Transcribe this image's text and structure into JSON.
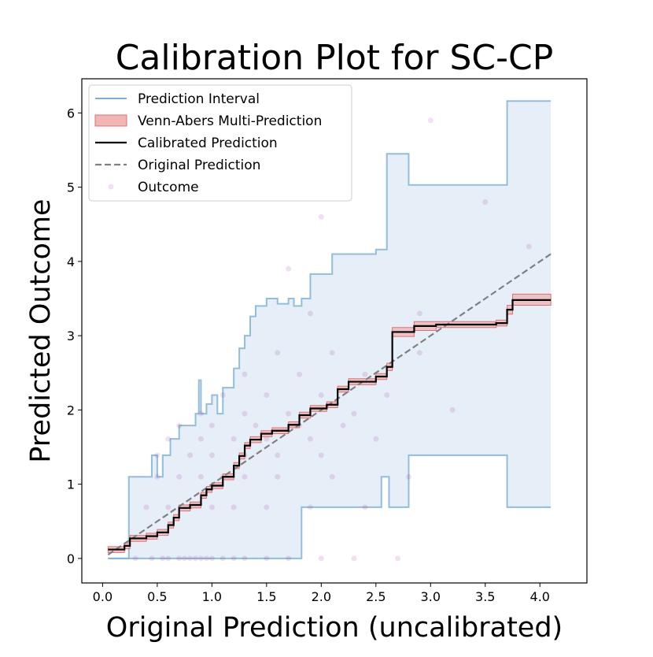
{
  "chart_data": {
    "type": "calibration",
    "title": "Calibration Plot for SC-CP",
    "x_label": "Original Prediction (uncalibrated)",
    "y_label": "Predicted Outcome",
    "xlim": [
      -0.19,
      4.43
    ],
    "ylim": [
      -0.33,
      6.46
    ],
    "xticks": [
      {
        "value": 0,
        "label": "0.0"
      },
      0.5,
      {
        "value": 1,
        "label": "1.0"
      },
      1.5,
      {
        "value": 2,
        "label": "2.0"
      },
      2.5,
      {
        "value": 3,
        "label": "3.0"
      },
      3.5,
      {
        "value": 4,
        "label": "4.0"
      }
    ],
    "yticks": [
      0,
      1,
      2,
      3,
      4,
      5,
      6
    ],
    "legend": "upper left",
    "series": [
      {
        "name": "Prediction Interval",
        "color": "#7bafd4",
        "fill": "#e6eef8",
        "x": [
          0.05,
          0.24,
          0.45,
          0.5,
          0.55,
          0.62,
          0.7,
          0.85,
          0.88,
          0.9,
          0.95,
          1.0,
          1.05,
          1.1,
          1.2,
          1.25,
          1.3,
          1.35,
          1.4,
          1.5,
          1.6,
          1.7,
          1.75,
          1.82,
          1.9,
          2.1,
          2.2,
          2.5,
          2.55,
          2.6,
          2.62,
          2.8,
          3.62,
          3.7,
          4.1
        ],
        "upper": [
          0,
          1.1,
          1.39,
          1.1,
          1.39,
          1.61,
          1.79,
          1.95,
          2.4,
          1.95,
          2.08,
          2.2,
          1.95,
          2.3,
          2.56,
          2.83,
          3.0,
          3.26,
          3.4,
          3.5,
          3.43,
          3.5,
          3.4,
          3.5,
          3.83,
          4.1,
          4.1,
          4.16,
          4.16,
          5.45,
          5.45,
          5.03,
          5.03,
          6.16,
          6.16
        ],
        "lower": [
          0,
          0,
          0,
          0,
          0,
          0,
          0,
          0,
          0,
          0,
          0,
          0,
          0,
          0,
          0,
          0,
          0,
          0,
          0,
          0,
          0,
          0,
          0,
          0.69,
          0.69,
          0.69,
          0.69,
          0.69,
          1.1,
          1.1,
          0.69,
          1.39,
          1.39,
          0.69,
          0.69
        ]
      },
      {
        "name": "Venn-Abers Multi-Prediction",
        "color": "#f0b6b6",
        "edge": "#e07070"
      },
      {
        "name": "Calibrated Prediction",
        "color": "#000000",
        "x": [
          0.05,
          0.2,
          0.25,
          0.4,
          0.5,
          0.6,
          0.65,
          0.7,
          0.8,
          0.9,
          0.95,
          1.0,
          1.1,
          1.2,
          1.25,
          1.3,
          1.35,
          1.45,
          1.55,
          1.7,
          1.8,
          1.9,
          2.05,
          2.15,
          2.25,
          2.5,
          2.6,
          2.65,
          2.85,
          3.05,
          3.6,
          3.7,
          3.75,
          4.1
        ],
        "values": [
          0.12,
          0.17,
          0.27,
          0.3,
          0.35,
          0.45,
          0.55,
          0.68,
          0.72,
          0.85,
          0.93,
          0.98,
          1.1,
          1.25,
          1.38,
          1.52,
          1.6,
          1.68,
          1.72,
          1.8,
          1.93,
          2.02,
          2.07,
          2.28,
          2.38,
          2.45,
          2.58,
          3.05,
          3.13,
          3.15,
          3.17,
          3.35,
          3.48,
          3.48
        ],
        "lower": [
          0.08,
          0.13,
          0.23,
          0.26,
          0.31,
          0.41,
          0.51,
          0.64,
          0.68,
          0.81,
          0.89,
          0.94,
          1.06,
          1.21,
          1.34,
          1.48,
          1.56,
          1.64,
          1.68,
          1.76,
          1.89,
          1.98,
          2.03,
          2.24,
          2.34,
          2.41,
          2.53,
          2.99,
          3.07,
          3.11,
          3.13,
          3.29,
          3.41,
          3.41
        ],
        "upper": [
          0.16,
          0.21,
          0.31,
          0.34,
          0.39,
          0.49,
          0.59,
          0.72,
          0.76,
          0.89,
          0.97,
          1.02,
          1.14,
          1.29,
          1.42,
          1.56,
          1.64,
          1.72,
          1.76,
          1.84,
          1.97,
          2.06,
          2.11,
          2.32,
          2.42,
          2.49,
          2.63,
          3.11,
          3.19,
          3.19,
          3.21,
          3.41,
          3.56,
          3.56
        ]
      },
      {
        "name": "Original Prediction",
        "color": "#808080",
        "x": [
          0.05,
          4.1
        ],
        "values": [
          0.05,
          4.1
        ]
      },
      {
        "name": "Outcome",
        "color": "#800080",
        "x": [
          0.3,
          0.45,
          0.55,
          0.6,
          0.7,
          0.75,
          0.8,
          0.85,
          0.9,
          0.95,
          1.0,
          1.1,
          1.2,
          1.3,
          1.5,
          1.7,
          2.0,
          2.3,
          2.7,
          0.4,
          0.6,
          0.8,
          1.0,
          1.2,
          1.5,
          1.9,
          2.4,
          0.5,
          0.7,
          0.9,
          1.1,
          1.3,
          1.6,
          2.1,
          2.8,
          0.5,
          0.8,
          1.0,
          1.3,
          1.6,
          2.0,
          0.6,
          0.9,
          1.2,
          1.5,
          1.9,
          2.5,
          0.7,
          1.0,
          1.4,
          1.8,
          2.2,
          0.9,
          1.3,
          1.7,
          2.3,
          1.1,
          1.5,
          2.0,
          2.6,
          1.3,
          1.8,
          2.4,
          1.6,
          2.1,
          2.9,
          1.9,
          2.9,
          3.0,
          3.5,
          3.9,
          1.7,
          2.0,
          3.2
        ],
        "values": [
          0,
          0,
          0,
          0,
          0,
          0,
          0,
          0,
          0,
          0,
          0,
          0,
          0,
          0,
          0,
          0,
          0,
          0,
          0,
          0.69,
          0.69,
          0.69,
          0.69,
          0.69,
          0.69,
          0.69,
          0.69,
          1.1,
          1.1,
          1.1,
          1.1,
          1.1,
          1.1,
          1.1,
          1.1,
          1.39,
          1.39,
          1.39,
          1.39,
          1.39,
          1.39,
          1.61,
          1.61,
          1.61,
          1.61,
          1.61,
          1.61,
          1.79,
          1.79,
          1.79,
          1.79,
          1.79,
          1.95,
          1.95,
          1.95,
          1.95,
          2.2,
          2.2,
          2.2,
          2.2,
          2.48,
          2.48,
          2.48,
          2.77,
          2.77,
          2.77,
          3.3,
          3.3,
          5.9,
          4.8,
          4.2,
          3.9,
          4.6,
          2.0
        ]
      }
    ]
  }
}
